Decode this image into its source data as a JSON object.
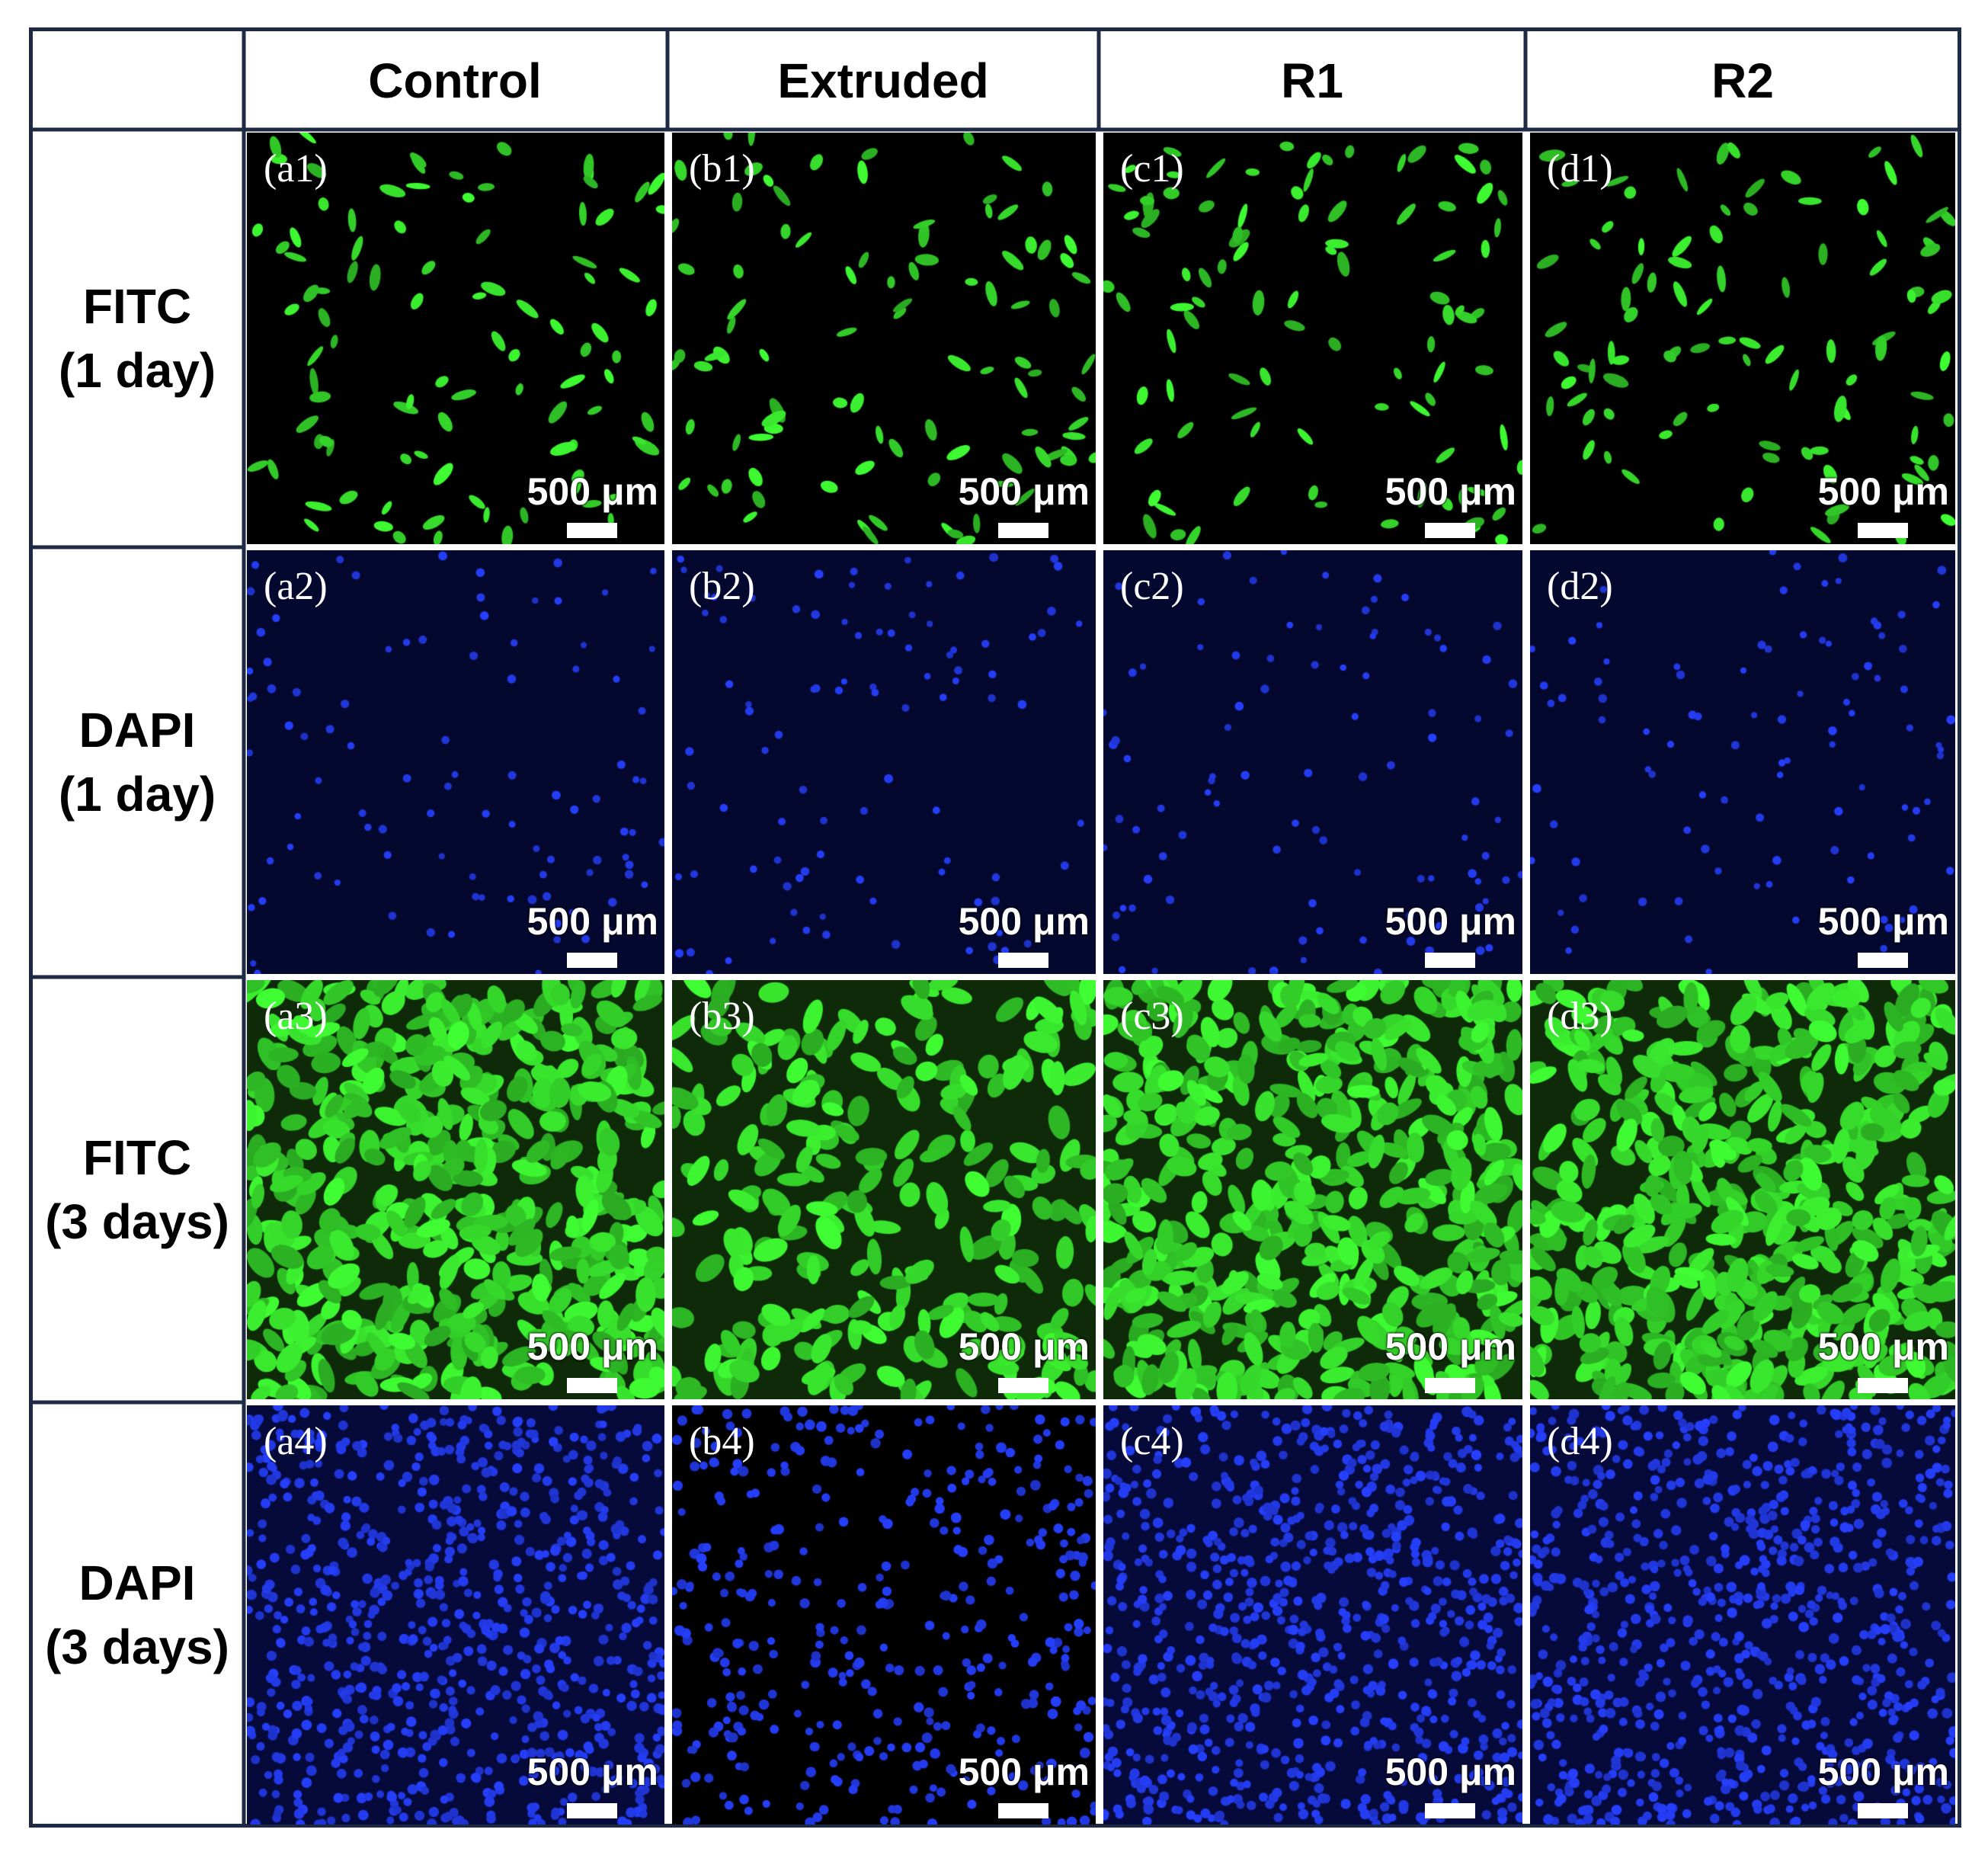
{
  "columns": [
    {
      "id": "a",
      "label": "Control"
    },
    {
      "id": "b",
      "label": "Extruded"
    },
    {
      "id": "c",
      "label": "R1"
    },
    {
      "id": "d",
      "label": "R2"
    }
  ],
  "rows": [
    {
      "id": "1",
      "label_line1": "FITC",
      "label_line2": "(1 day)",
      "stain": "FITC",
      "density": "sparse"
    },
    {
      "id": "2",
      "label_line1": "DAPI",
      "label_line2": "(1 day)",
      "stain": "DAPI",
      "density": "sparse"
    },
    {
      "id": "3",
      "label_line1": "FITC",
      "label_line2": "(3 days)",
      "stain": "FITC",
      "density": "dense"
    },
    {
      "id": "4",
      "label_line1": "DAPI",
      "label_line2": "(3 days)",
      "stain": "DAPI",
      "density": "dense"
    }
  ],
  "panels": [
    {
      "label": "(a1)",
      "scale_text": "500 μm"
    },
    {
      "label": "(b1)",
      "scale_text": "500 μm"
    },
    {
      "label": "(c1)",
      "scale_text": "500 μm"
    },
    {
      "label": "(d1)",
      "scale_text": "500 μm"
    },
    {
      "label": "(a2)",
      "scale_text": "500 μm"
    },
    {
      "label": "(b2)",
      "scale_text": "500 μm"
    },
    {
      "label": "(c2)",
      "scale_text": "500 μm"
    },
    {
      "label": "(d2)",
      "scale_text": "500 μm"
    },
    {
      "label": "(a3)",
      "scale_text": "500 μm"
    },
    {
      "label": "(b3)",
      "scale_text": "500 μm"
    },
    {
      "label": "(c3)",
      "scale_text": "500 μm"
    },
    {
      "label": "(d3)",
      "scale_text": "500 μm"
    },
    {
      "label": "(a4)",
      "scale_text": "500 μm"
    },
    {
      "label": "(b4)",
      "scale_text": "500 μm"
    },
    {
      "label": "(c4)",
      "scale_text": "500 μm"
    },
    {
      "label": "(d4)",
      "scale_text": "500 μm"
    }
  ],
  "colors": {
    "frame": "#1e2a44",
    "fitc_cell": "#3fd63a",
    "fitc_background": "#0a1a06",
    "dapi_cell": "#2a3cff",
    "dapi_background": "#05082e",
    "label_text": "#ffffff"
  }
}
